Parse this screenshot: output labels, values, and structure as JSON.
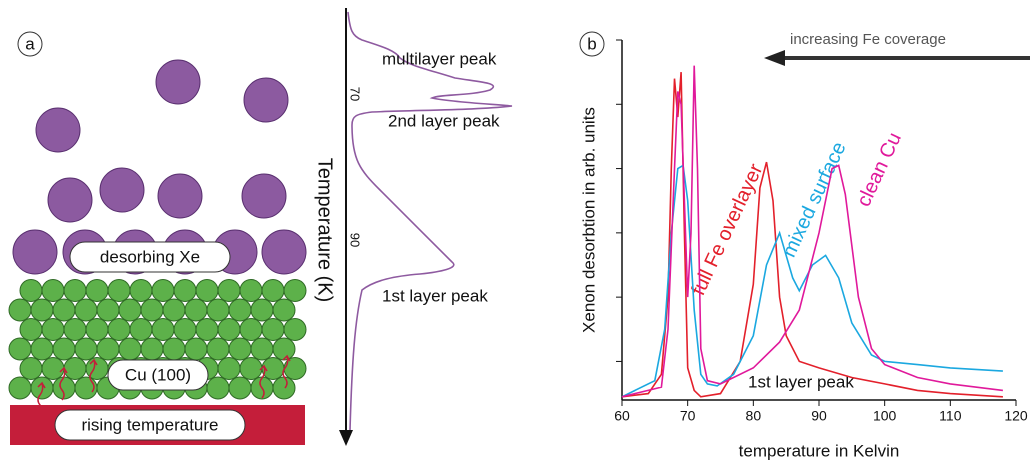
{
  "panel_a": {
    "label": "a",
    "axis_label": "Temperature (K)",
    "ticks": [
      "70",
      "90"
    ],
    "peaks": [
      "multilayer peak",
      "2nd layer peak",
      "1st layer peak"
    ],
    "labels": [
      "desorbing Xe",
      "Cu (100)",
      "rising temperature"
    ]
  },
  "chart_data": {
    "type": "line",
    "panel_label": "b",
    "xlabel": "temperature in Kelvin",
    "ylabel": "Xenon desorbtion in arb. units",
    "annotations": [
      "increasing Fe coverage",
      "1st layer peak"
    ],
    "xlim": [
      60,
      120
    ],
    "xticks": [
      60,
      70,
      80,
      90,
      100,
      110,
      120
    ],
    "ylim": [
      -0.6,
      5
    ],
    "yticks": [
      0,
      1,
      2,
      3,
      4,
      5
    ],
    "ytick_labels": false,
    "series": [
      {
        "name": "full Fe overlayer",
        "color": "#e3202b",
        "x": [
          60,
          64,
          66,
          67,
          67.5,
          68,
          68.5,
          69,
          69.5,
          70,
          71,
          72,
          75,
          78,
          80,
          81,
          82,
          83,
          84,
          85,
          87,
          90,
          95,
          100,
          105,
          110,
          118
        ],
        "values": [
          -0.55,
          -0.5,
          -0.2,
          1.0,
          3.0,
          4.4,
          3.8,
          4.5,
          2.0,
          -0.1,
          -0.45,
          -0.55,
          -0.5,
          0.0,
          1.2,
          2.7,
          3.1,
          2.5,
          1.0,
          0.4,
          0.0,
          -0.1,
          -0.25,
          -0.35,
          -0.45,
          -0.5,
          -0.55
        ]
      },
      {
        "name": "mixed surface",
        "color": "#1ba8e0",
        "x": [
          60,
          65,
          66.5,
          67.5,
          68.5,
          69.3,
          70,
          71,
          72,
          73,
          74.5,
          77,
          80,
          82,
          84,
          86,
          87,
          89,
          91,
          93,
          95,
          98,
          100,
          105,
          110,
          118
        ],
        "values": [
          -0.55,
          -0.3,
          0.5,
          2.0,
          3.0,
          3.05,
          2.5,
          0.8,
          -0.2,
          -0.35,
          -0.38,
          -0.2,
          0.4,
          1.5,
          2.0,
          1.3,
          1.1,
          1.5,
          1.65,
          1.3,
          0.6,
          0.1,
          0.0,
          -0.05,
          -0.1,
          -0.15
        ]
      },
      {
        "name": "clean Cu",
        "color": "#e0199b",
        "x": [
          60,
          66,
          67,
          68,
          68.5,
          69,
          70,
          70.5,
          71,
          71.5,
          72,
          73,
          75,
          80,
          84,
          87,
          90,
          92,
          93,
          94,
          96,
          98,
          100,
          105,
          110,
          118
        ],
        "values": [
          -0.55,
          -0.4,
          0.5,
          3.0,
          4.2,
          4.0,
          1.0,
          2.0,
          4.6,
          3.0,
          0.2,
          -0.3,
          -0.35,
          -0.1,
          0.3,
          0.8,
          2.0,
          3.0,
          3.05,
          2.6,
          1.0,
          0.2,
          -0.05,
          -0.25,
          -0.35,
          -0.45
        ]
      }
    ]
  }
}
